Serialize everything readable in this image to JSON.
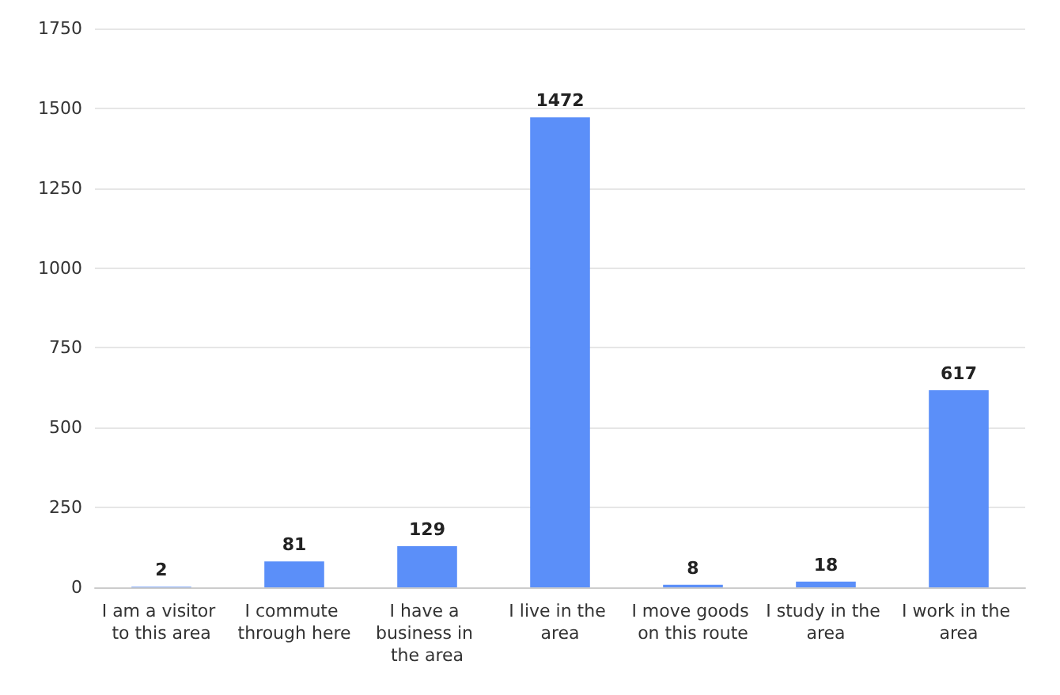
{
  "chart_data": {
    "type": "bar",
    "categories": [
      "I am a visitor to this area",
      "I commute through here",
      "I have a business in the area",
      "I live in the area",
      "I move goods on this route",
      "I study in the area",
      "I work in the area"
    ],
    "values": [
      2,
      81,
      129,
      1472,
      8,
      18,
      617
    ],
    "color": "#5b8ff9",
    "ylim": [
      0,
      1750
    ],
    "yticks": [
      0,
      250,
      500,
      750,
      1000,
      1250,
      1500,
      1750
    ],
    "grid": "y",
    "data_labels": true
  }
}
